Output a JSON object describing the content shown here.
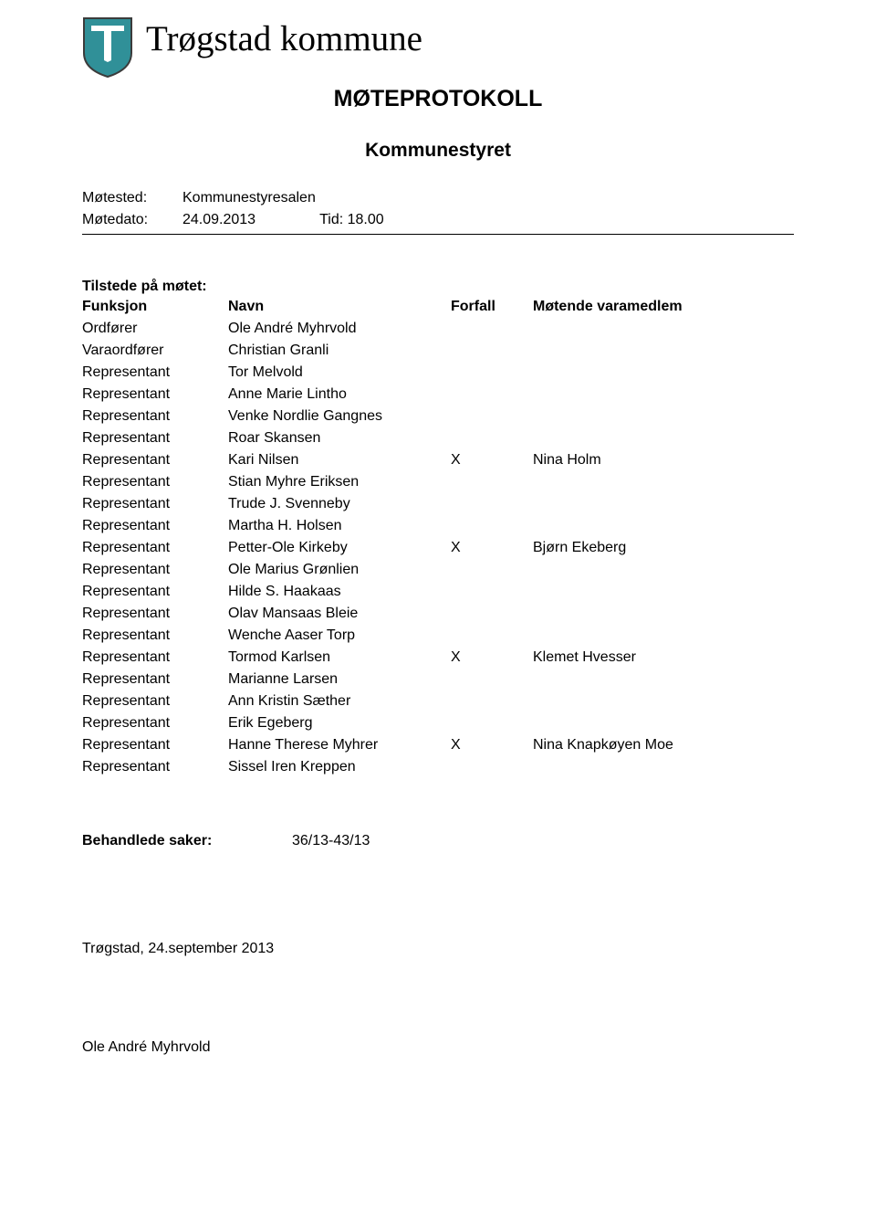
{
  "colors": {
    "background": "#ffffff",
    "text": "#000000",
    "logo_fill": "#309098",
    "logo_stroke": "#3b3b3b",
    "divider": "#000000"
  },
  "typography": {
    "body_family": "Verdana",
    "title_family": "Georgia",
    "municipality_fontsize": 39,
    "doc_title_fontsize": 25,
    "doc_subtitle_fontsize": 21,
    "body_fontsize": 16
  },
  "header": {
    "municipality_name": "Trøgstad kommune",
    "doc_title": "MØTEPROTOKOLL",
    "doc_subtitle": "Kommunestyret"
  },
  "meeting_meta": {
    "place_label": "Møtested:",
    "place_value": "Kommunestyresalen",
    "date_label": "Møtedato:",
    "date_value": "24.09.2013",
    "time_label": "Tid:",
    "time_value": "18.00"
  },
  "attendance": {
    "section_title": "Tilstede på møtet:",
    "columns": {
      "funksjon": "Funksjon",
      "navn": "Navn",
      "forfall": "Forfall",
      "varamedlem": "Møtende varamedlem"
    },
    "column_widths": {
      "funksjon": 160,
      "navn": 244,
      "forfall": 90
    },
    "rows": [
      {
        "funksjon": "Ordfører",
        "navn": "Ole André Myhrvold",
        "forfall": "",
        "varamedlem": ""
      },
      {
        "funksjon": "Varaordfører",
        "navn": "Christian Granli",
        "forfall": "",
        "varamedlem": ""
      },
      {
        "funksjon": "Representant",
        "navn": "Tor Melvold",
        "forfall": "",
        "varamedlem": ""
      },
      {
        "funksjon": "Representant",
        "navn": "Anne Marie Lintho",
        "forfall": "",
        "varamedlem": ""
      },
      {
        "funksjon": "Representant",
        "navn": "Venke Nordlie Gangnes",
        "forfall": "",
        "varamedlem": ""
      },
      {
        "funksjon": "Representant",
        "navn": "Roar Skansen",
        "forfall": "",
        "varamedlem": ""
      },
      {
        "funksjon": "Representant",
        "navn": "Kari Nilsen",
        "forfall": "X",
        "varamedlem": "Nina Holm"
      },
      {
        "funksjon": "Representant",
        "navn": "Stian Myhre Eriksen",
        "forfall": "",
        "varamedlem": ""
      },
      {
        "funksjon": "Representant",
        "navn": "Trude J. Svenneby",
        "forfall": "",
        "varamedlem": ""
      },
      {
        "funksjon": "Representant",
        "navn": "Martha H. Holsen",
        "forfall": "",
        "varamedlem": ""
      },
      {
        "funksjon": "Representant",
        "navn": "Petter-Ole Kirkeby",
        "forfall": "X",
        "varamedlem": "Bjørn Ekeberg"
      },
      {
        "funksjon": "Representant",
        "navn": "Ole Marius Grønlien",
        "forfall": "",
        "varamedlem": ""
      },
      {
        "funksjon": "Representant",
        "navn": "Hilde S. Haakaas",
        "forfall": "",
        "varamedlem": ""
      },
      {
        "funksjon": "Representant",
        "navn": "Olav Mansaas Bleie",
        "forfall": "",
        "varamedlem": ""
      },
      {
        "funksjon": "Representant",
        "navn": "Wenche Aaser Torp",
        "forfall": "",
        "varamedlem": ""
      },
      {
        "funksjon": "Representant",
        "navn": "Tormod Karlsen",
        "forfall": "X",
        "varamedlem": "Klemet Hvesser"
      },
      {
        "funksjon": "Representant",
        "navn": "Marianne Larsen",
        "forfall": "",
        "varamedlem": ""
      },
      {
        "funksjon": "Representant",
        "navn": "Ann Kristin Sæther",
        "forfall": "",
        "varamedlem": ""
      },
      {
        "funksjon": "Representant",
        "navn": "Erik Egeberg",
        "forfall": "",
        "varamedlem": ""
      },
      {
        "funksjon": "Representant",
        "navn": "Hanne Therese Myhrer",
        "forfall": "X",
        "varamedlem": "Nina Knapkøyen Moe"
      },
      {
        "funksjon": "Representant",
        "navn": "Sissel Iren Kreppen",
        "forfall": "",
        "varamedlem": ""
      }
    ]
  },
  "behandlede": {
    "label": "Behandlede saker:",
    "value": "36/13-43/13"
  },
  "footer": {
    "place_date": "Trøgstad, 24.september 2013",
    "signature_name": "Ole André Myhrvold"
  }
}
